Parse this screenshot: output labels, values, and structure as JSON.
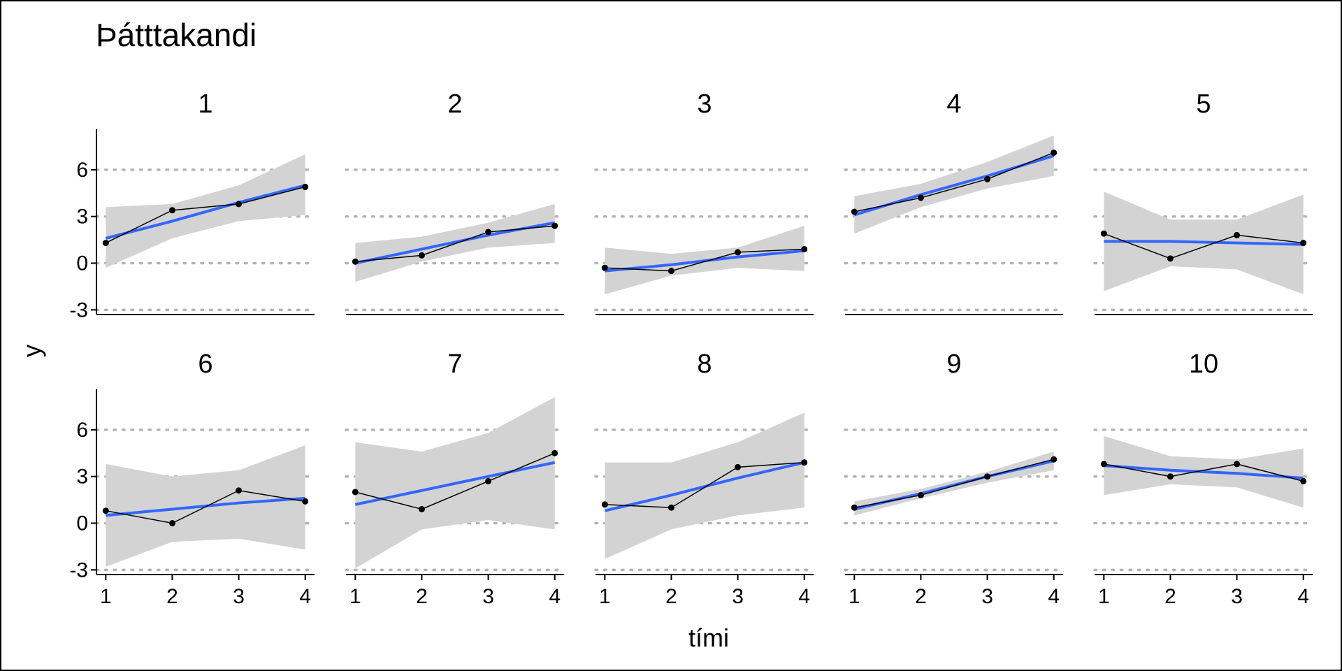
{
  "chart_data": {
    "type": "line",
    "title": "Þátttakandi",
    "xlabel": "tími",
    "ylabel": "y",
    "x": [
      1,
      2,
      3,
      4
    ],
    "x_ticks": [
      "1",
      "2",
      "3",
      "4"
    ],
    "y_ticks": [
      -3,
      0,
      3,
      6
    ],
    "xlim": [
      0.86,
      4.14
    ],
    "ylim": [
      -3.3,
      8.6
    ],
    "grid": "horizontal dotted",
    "colors": {
      "observed": "#000000",
      "fit": "#3366FF",
      "band": "#D3D3D3"
    },
    "series": [
      {
        "name": "1",
        "values": [
          1.3,
          3.4,
          3.8,
          4.9
        ],
        "fit": [
          1.6,
          2.7,
          3.9,
          5.0
        ],
        "band_lo": [
          -0.3,
          1.6,
          2.7,
          3.1
        ],
        "band_hi": [
          3.6,
          3.8,
          5.0,
          7.0
        ]
      },
      {
        "name": "2",
        "values": [
          0.1,
          0.5,
          2.0,
          2.4
        ],
        "fit": [
          0.0,
          0.9,
          1.8,
          2.6
        ],
        "band_lo": [
          -1.2,
          0.1,
          1.0,
          1.3
        ],
        "band_hi": [
          1.3,
          1.7,
          2.6,
          3.8
        ]
      },
      {
        "name": "3",
        "values": [
          -0.3,
          -0.5,
          0.7,
          0.9
        ],
        "fit": [
          -0.5,
          -0.1,
          0.4,
          0.8
        ],
        "band_lo": [
          -2.0,
          -0.8,
          -0.3,
          -0.5
        ],
        "band_hi": [
          1.0,
          0.6,
          1.0,
          2.4
        ]
      },
      {
        "name": "4",
        "values": [
          3.3,
          4.2,
          5.4,
          7.1
        ],
        "fit": [
          3.1,
          4.4,
          5.6,
          6.9
        ],
        "band_lo": [
          1.9,
          3.6,
          4.8,
          5.6
        ],
        "band_hi": [
          4.3,
          5.1,
          6.5,
          8.2
        ]
      },
      {
        "name": "5",
        "values": [
          1.9,
          0.3,
          1.8,
          1.3
        ],
        "fit": [
          1.4,
          1.4,
          1.3,
          1.2
        ],
        "band_lo": [
          -1.8,
          -0.2,
          -0.4,
          -2.0
        ],
        "band_hi": [
          4.6,
          2.8,
          2.8,
          4.4
        ]
      },
      {
        "name": "6",
        "values": [
          0.8,
          0.0,
          2.1,
          1.4
        ],
        "fit": [
          0.5,
          0.9,
          1.3,
          1.6
        ],
        "band_lo": [
          -2.8,
          -1.2,
          -1.0,
          -1.7
        ],
        "band_hi": [
          3.8,
          3.0,
          3.4,
          5.0
        ]
      },
      {
        "name": "7",
        "values": [
          2.0,
          0.9,
          2.7,
          4.5
        ],
        "fit": [
          1.2,
          2.1,
          3.0,
          3.9
        ],
        "band_lo": [
          -2.9,
          -0.4,
          0.2,
          -0.4
        ],
        "band_hi": [
          5.2,
          4.6,
          5.8,
          8.1
        ]
      },
      {
        "name": "8",
        "values": [
          1.2,
          1.0,
          3.6,
          3.9
        ],
        "fit": [
          0.8,
          1.8,
          2.9,
          3.9
        ],
        "band_lo": [
          -2.3,
          -0.4,
          0.5,
          1.0
        ],
        "band_hi": [
          3.9,
          3.9,
          5.2,
          7.1
        ]
      },
      {
        "name": "9",
        "values": [
          1.0,
          1.8,
          3.0,
          4.1
        ],
        "fit": [
          0.9,
          1.9,
          3.0,
          4.0
        ],
        "band_lo": [
          0.5,
          1.6,
          2.6,
          3.4
        ],
        "band_hi": [
          1.4,
          2.2,
          3.3,
          4.6
        ]
      },
      {
        "name": "10",
        "values": [
          3.8,
          3.0,
          3.8,
          2.7
        ],
        "fit": [
          3.7,
          3.4,
          3.2,
          2.9
        ],
        "band_lo": [
          1.8,
          2.5,
          2.3,
          1.0
        ],
        "band_hi": [
          5.6,
          4.3,
          4.1,
          4.8
        ]
      }
    ]
  }
}
